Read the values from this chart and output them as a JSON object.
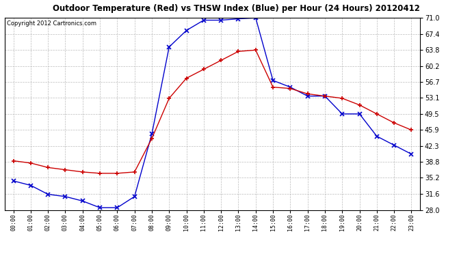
{
  "title": "Outdoor Temperature (Red) vs THSW Index (Blue) per Hour (24 Hours) 20120412",
  "copyright": "Copyright 2012 Cartronics.com",
  "hours": [
    0,
    1,
    2,
    3,
    4,
    5,
    6,
    7,
    8,
    9,
    10,
    11,
    12,
    13,
    14,
    15,
    16,
    17,
    18,
    19,
    20,
    21,
    22,
    23
  ],
  "red_temp": [
    39.0,
    38.5,
    37.5,
    37.0,
    36.5,
    36.2,
    36.2,
    36.5,
    44.0,
    53.0,
    57.5,
    59.5,
    61.5,
    63.5,
    63.8,
    55.5,
    55.2,
    54.0,
    53.5,
    53.0,
    51.5,
    49.5,
    47.5,
    45.9
  ],
  "blue_thsw": [
    34.5,
    33.5,
    31.5,
    31.0,
    30.0,
    28.5,
    28.5,
    31.0,
    45.0,
    64.5,
    68.2,
    70.5,
    70.5,
    70.8,
    71.0,
    57.0,
    55.5,
    53.5,
    53.5,
    49.5,
    49.5,
    44.5,
    42.5,
    40.5
  ],
  "ylim_min": 28.0,
  "ylim_max": 71.0,
  "yticks": [
    28.0,
    31.6,
    35.2,
    38.8,
    42.3,
    45.9,
    49.5,
    53.1,
    56.7,
    60.2,
    63.8,
    67.4,
    71.0
  ],
  "bg_color": "#ffffff",
  "plot_bg": "#ffffff",
  "red_color": "#cc0000",
  "blue_color": "#0000cc",
  "grid_color": "#aaaaaa",
  "title_color": "#000000",
  "copyright_color": "#000000"
}
